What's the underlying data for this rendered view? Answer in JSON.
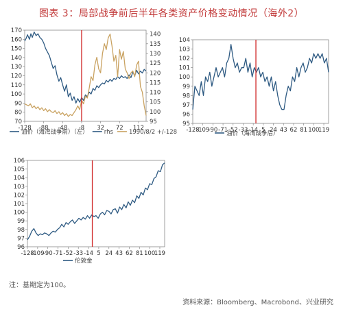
{
  "figure": {
    "title": "图表 3：局部战争前后半年各类资产价格变动情况（海外2）",
    "footnote": "注：基期定为100。",
    "source": "资料来源：Bloomberg、Macrobond、兴业研究"
  },
  "colors": {
    "title": "#c23a3a",
    "series_blue": "#2e5a82",
    "series_tan": "#c9a261",
    "event_line": "#d02626",
    "axis": "#888888",
    "text": "#555555"
  },
  "chart_data": [
    {
      "type": "line",
      "title": "",
      "x_ticks": [
        "-128",
        "-88",
        "-48",
        "-8",
        "32",
        "72",
        "112"
      ],
      "xlim": [
        -128,
        128
      ],
      "event_x": -8,
      "y_left": {
        "ticks": [
          70,
          80,
          90,
          100,
          110,
          120,
          130,
          140,
          150,
          160,
          170
        ],
        "lim": [
          70,
          170
        ]
      },
      "y_right": {
        "ticks": [
          95,
          100,
          105,
          110,
          115,
          120,
          125,
          130,
          135,
          140
        ],
        "lim": [
          95,
          142
        ]
      },
      "grid": false,
      "legend": "bottom",
      "series": [
        {
          "name": "油价（海湾战争前）（左）",
          "axis": "left",
          "color": "#2e5a82",
          "x": [
            -128,
            -125,
            -122,
            -118,
            -115,
            -112,
            -108,
            -104,
            -100,
            -96,
            -92,
            -88,
            -84,
            -80,
            -76,
            -72,
            -68,
            -64,
            -60,
            -56,
            -52,
            -48,
            -44,
            -40,
            -36,
            -32,
            -28,
            -24,
            -20,
            -16,
            -12,
            -8,
            -4,
            0,
            4,
            8,
            12,
            16,
            20,
            24,
            28,
            32,
            36,
            40,
            44,
            48,
            52,
            56,
            60,
            64,
            68,
            72,
            76,
            80,
            84,
            88,
            92,
            96,
            100,
            104,
            108,
            112,
            116,
            120,
            124,
            128
          ],
          "y": [
            158,
            161,
            165,
            160,
            166,
            162,
            168,
            164,
            166,
            162,
            160,
            156,
            150,
            146,
            142,
            135,
            128,
            131,
            121,
            114,
            118,
            110,
            103,
            110,
            97,
            101,
            93,
            97,
            90,
            95,
            91,
            96,
            93,
            99,
            97,
            102,
            100,
            106,
            104,
            109,
            107,
            110,
            112,
            111,
            115,
            113,
            116,
            114,
            117,
            116,
            119,
            117,
            120,
            118,
            119,
            117,
            121,
            118,
            124,
            120,
            126,
            122,
            125,
            123,
            127,
            125
          ]
        },
        {
          "name": "1990/8/2 +/-128",
          "axis": "right",
          "color": "#c9a261",
          "x": [
            -128,
            -124,
            -120,
            -116,
            -112,
            -108,
            -104,
            -100,
            -96,
            -92,
            -88,
            -84,
            -80,
            -76,
            -72,
            -68,
            -64,
            -60,
            -56,
            -52,
            -48,
            -44,
            -40,
            -36,
            -32,
            -28,
            -24,
            -20,
            -16,
            -12,
            -8,
            -4,
            0,
            4,
            8,
            12,
            16,
            20,
            24,
            28,
            32,
            36,
            40,
            44,
            48,
            52,
            56,
            60,
            64,
            68,
            72,
            76,
            80,
            84,
            88,
            92,
            96,
            100,
            104,
            108,
            112,
            116,
            120,
            124,
            128
          ],
          "y": [
            104,
            103.5,
            103,
            104,
            102,
            103,
            101.5,
            102.5,
            101,
            102,
            100.5,
            101.5,
            100,
            101,
            100,
            99.5,
            100.5,
            99,
            100,
            98.5,
            99.5,
            98,
            99,
            97.5,
            98.5,
            98,
            99.5,
            101,
            103,
            101,
            106,
            104,
            108,
            107,
            112,
            118,
            116,
            124,
            128,
            122,
            120,
            130,
            135,
            132,
            138,
            140,
            134,
            126,
            129,
            118,
            132,
            127,
            131,
            122,
            120,
            117,
            120,
            121,
            118,
            124,
            126,
            113,
            110,
            103,
            98
          ]
        }
      ],
      "legend_items": [
        {
          "label": "油价（海湾战争前）（左）",
          "color": "#2e5a82"
        },
        {
          "label": "rhs",
          "color": "#2e5a82"
        },
        {
          "label": "1990/8/2 +/-128",
          "color": "#c9a261"
        }
      ]
    },
    {
      "type": "line",
      "title": "",
      "x_ticks": [
        "-128",
        "-109",
        "-90",
        "-71",
        "-52",
        "-33",
        "-14",
        "5",
        "24",
        "43",
        "62",
        "81",
        "100",
        "119"
      ],
      "xlim": [
        -128,
        128
      ],
      "event_x": -9,
      "y_left": {
        "ticks": [
          95,
          96,
          97,
          98,
          99,
          100,
          101,
          102,
          103,
          104
        ],
        "lim": [
          95,
          104
        ]
      },
      "grid": false,
      "legend": "bottom",
      "series": [
        {
          "name": "油价（海湾战争后）",
          "axis": "left",
          "color": "#2e5a82",
          "x": [
            -128,
            -124,
            -120,
            -116,
            -112,
            -108,
            -104,
            -100,
            -96,
            -92,
            -88,
            -84,
            -80,
            -76,
            -72,
            -68,
            -64,
            -60,
            -56,
            -52,
            -48,
            -44,
            -40,
            -36,
            -32,
            -28,
            -24,
            -20,
            -16,
            -12,
            -8,
            -4,
            0,
            4,
            8,
            12,
            16,
            20,
            24,
            28,
            32,
            36,
            40,
            44,
            48,
            52,
            56,
            60,
            64,
            68,
            72,
            76,
            80,
            84,
            88,
            92,
            96,
            100,
            104,
            108,
            112,
            116,
            120,
            124,
            128
          ],
          "y": [
            96.5,
            99,
            98.5,
            98,
            99.5,
            98,
            100,
            99.5,
            100.5,
            99,
            100,
            101,
            100,
            100.5,
            101,
            100,
            101.5,
            102,
            103.5,
            102,
            101,
            101.5,
            100.5,
            101,
            101,
            102,
            100.5,
            101.5,
            100,
            101,
            100.5,
            101,
            100,
            100.5,
            99.5,
            100,
            99,
            100,
            98.5,
            99.5,
            98,
            97,
            96.5,
            96.5,
            98,
            99,
            98.5,
            100,
            99.5,
            101,
            100,
            101,
            101.5,
            100.5,
            101,
            102,
            101.5,
            102.5,
            102,
            102.5,
            102,
            102.5,
            101.5,
            102,
            100.5
          ]
        }
      ],
      "legend_items": [
        {
          "label": "油价（海湾战争后）",
          "color": "#2e5a82"
        }
      ]
    },
    {
      "type": "line",
      "title": "",
      "x_ticks": [
        "-128",
        "-109",
        "-90",
        "-71",
        "-52",
        "-33",
        "-14",
        "5",
        "24",
        "43",
        "62",
        "81",
        "100",
        "119"
      ],
      "xlim": [
        -128,
        128
      ],
      "event_x": -7,
      "y_left": {
        "ticks": [
          96,
          97,
          98,
          99,
          100,
          101,
          102,
          103,
          104,
          105,
          106
        ],
        "lim": [
          96,
          106
        ]
      },
      "grid": false,
      "legend": "bottom",
      "series": [
        {
          "name": "伦敦金",
          "axis": "left",
          "color": "#2e5a82",
          "x": [
            -128,
            -124,
            -120,
            -116,
            -112,
            -108,
            -104,
            -100,
            -96,
            -92,
            -88,
            -84,
            -80,
            -76,
            -72,
            -68,
            -64,
            -60,
            -56,
            -52,
            -48,
            -44,
            -40,
            -36,
            -32,
            -28,
            -24,
            -20,
            -16,
            -12,
            -8,
            -4,
            0,
            4,
            8,
            12,
            16,
            20,
            24,
            28,
            32,
            36,
            40,
            44,
            48,
            52,
            56,
            60,
            64,
            68,
            72,
            76,
            80,
            84,
            88,
            92,
            96,
            100,
            104,
            108,
            112,
            116,
            120,
            124,
            128
          ],
          "y": [
            96.8,
            97.2,
            97.8,
            98.1,
            97.6,
            97.3,
            97.5,
            97.4,
            97.6,
            97.5,
            97.3,
            97.6,
            97.8,
            97.7,
            98.0,
            98.2,
            98.6,
            98.3,
            98.8,
            98.6,
            98.9,
            99.1,
            98.7,
            99.0,
            99.3,
            99.1,
            99.4,
            99.2,
            99.6,
            99.3,
            99.7,
            99.5,
            99.6,
            99.3,
            99.8,
            100.0,
            99.7,
            100.2,
            100.1,
            99.8,
            100.3,
            100.4,
            99.9,
            100.6,
            100.3,
            100.9,
            100.5,
            101.2,
            100.8,
            101.4,
            101.1,
            101.9,
            101.6,
            102.3,
            102.0,
            102.8,
            102.6,
            103.3,
            103.2,
            103.9,
            104.1,
            104.8,
            104.7,
            105.5,
            105.7
          ]
        }
      ],
      "legend_items": [
        {
          "label": "伦敦金",
          "color": "#2e5a82"
        }
      ]
    }
  ]
}
